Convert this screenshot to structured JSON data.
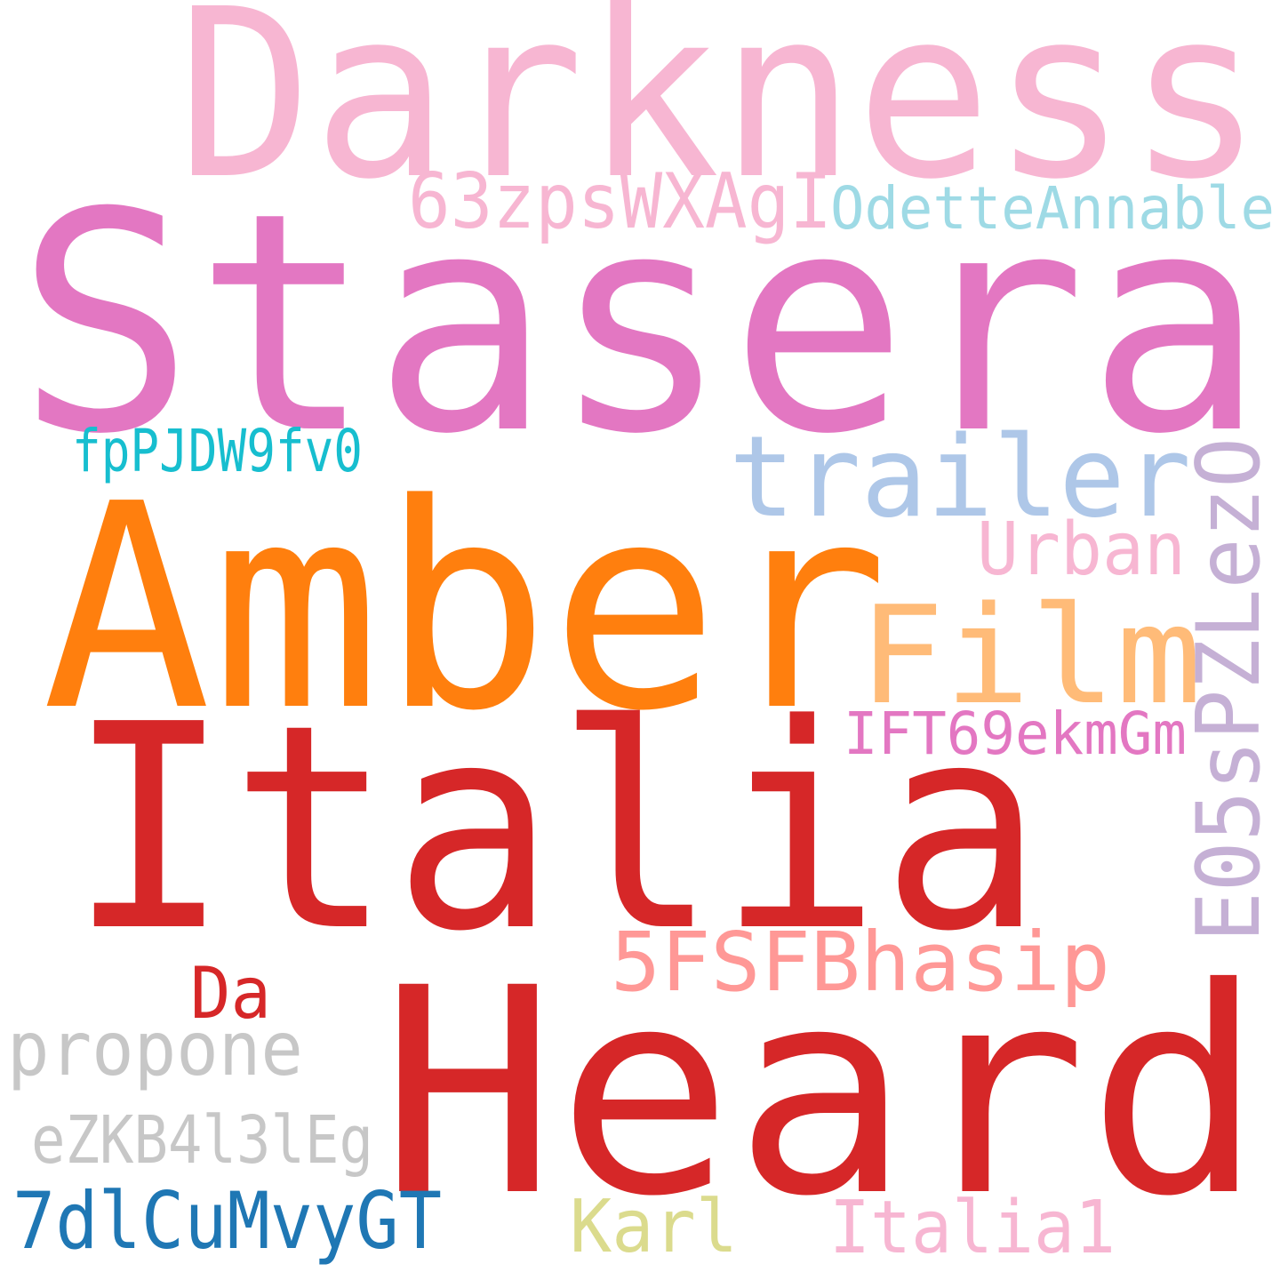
{
  "word_cloud": {
    "words": [
      {
        "id": "darkness",
        "text": "Darkness",
        "color": "#f7b6d2"
      },
      {
        "id": "stasera",
        "text": "Stasera",
        "color": "#e377c2"
      },
      {
        "id": "63zps",
        "text": "63zpsWXAgI",
        "color": "#f7b6d2"
      },
      {
        "id": "odette",
        "text": "OdetteAnnable",
        "color": "#9edae5"
      },
      {
        "id": "fppjdw",
        "text": "fpPJDW9fv0",
        "color": "#17becf"
      },
      {
        "id": "trailer",
        "text": "trailer",
        "color": "#aec7e8"
      },
      {
        "id": "e05sp",
        "text": "E05sPZLezO",
        "color": "#c5b0d5"
      },
      {
        "id": "amber",
        "text": "Amber",
        "color": "#ff7f0e"
      },
      {
        "id": "urban",
        "text": "Urban",
        "color": "#f7b6d2"
      },
      {
        "id": "film",
        "text": "Film",
        "color": "#ffbb78"
      },
      {
        "id": "ift69",
        "text": "IFT69ekmGm",
        "color": "#e377c2"
      },
      {
        "id": "italia",
        "text": "Italia",
        "color": "#d62728"
      },
      {
        "id": "5fsfb",
        "text": "5FSFBhasip",
        "color": "#ff9896"
      },
      {
        "id": "da",
        "text": "Da",
        "color": "#d62728"
      },
      {
        "id": "heard",
        "text": "Heard",
        "color": "#d62728"
      },
      {
        "id": "propone",
        "text": "propone",
        "color": "#c7c7c7"
      },
      {
        "id": "ezkb",
        "text": "eZKB4l3lEg",
        "color": "#c7c7c7"
      },
      {
        "id": "7dlcu",
        "text": "7dlCuMvyGT",
        "color": "#1f77b4"
      },
      {
        "id": "karl",
        "text": "Karl",
        "color": "#dbdb8d"
      },
      {
        "id": "italia1",
        "text": "Italia1",
        "color": "#f7b6d2"
      }
    ]
  }
}
